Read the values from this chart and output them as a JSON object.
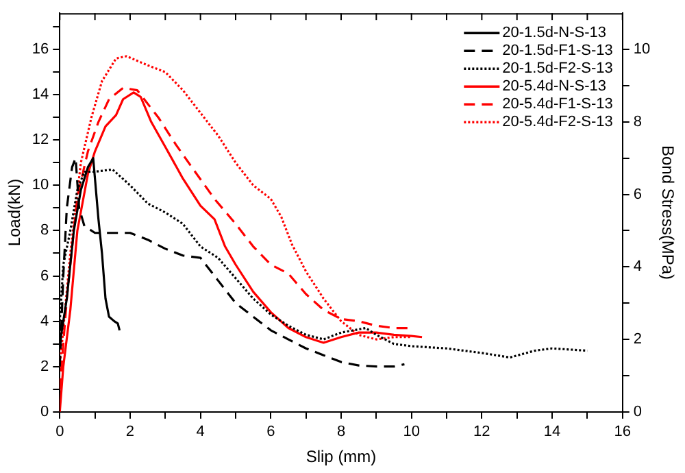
{
  "chart_data": {
    "type": "line",
    "xlabel": "Slip (mm)",
    "ylabel": "Load(kN)",
    "y2label": "Bond Stress(MPa)",
    "xlim": [
      0,
      16
    ],
    "xticks": [
      0,
      {
        "value": 1,
        "label": null
      },
      2,
      {
        "value": 3,
        "label": null
      },
      4,
      {
        "value": 5,
        "label": null
      },
      6,
      {
        "value": 7,
        "label": null
      },
      8,
      {
        "value": 9,
        "label": null
      },
      10,
      {
        "value": 11,
        "label": null
      },
      12,
      {
        "value": 13,
        "label": null
      },
      14,
      {
        "value": 15,
        "label": null
      },
      16
    ],
    "ylim": [
      0,
      17.6
    ],
    "yticks": [
      0,
      {
        "value": 1,
        "label": null
      },
      2,
      {
        "value": 3,
        "label": null
      },
      4,
      {
        "value": 5,
        "label": null
      },
      6,
      {
        "value": 7,
        "label": null
      },
      8,
      {
        "value": 9,
        "label": null
      },
      10,
      {
        "value": 11,
        "label": null
      },
      12,
      {
        "value": 13,
        "label": null
      },
      14,
      {
        "value": 15,
        "label": null
      },
      16,
      {
        "value": 17,
        "label": null
      }
    ],
    "y2lim": [
      0,
      11
    ],
    "y2ticks": [
      0,
      {
        "value": 1,
        "label": null
      },
      2,
      {
        "value": 3,
        "label": null
      },
      4,
      {
        "value": 5,
        "label": null
      },
      6,
      {
        "value": 7,
        "label": null
      },
      8,
      {
        "value": 9,
        "label": null
      },
      10
    ],
    "grid": false,
    "legend": "top right",
    "marker": "none",
    "series": [
      {
        "name": "20-1.5d-N-S-13",
        "color": "#000000",
        "line_style": "solid",
        "x": [
          0,
          0.2,
          0.4,
          0.6,
          0.8,
          0.95,
          1.1,
          1.2,
          1.3,
          1.4,
          1.55,
          1.65,
          1.7
        ],
        "values": [
          3,
          5,
          8,
          9.8,
          10.8,
          11.2,
          8.5,
          7,
          5,
          4.2,
          4,
          3.9,
          3.6
        ]
      },
      {
        "name": "20-1.5d-F1-S-13",
        "color": "#000000",
        "line_style": "dashed",
        "x": [
          0,
          0.1,
          0.2,
          0.35,
          0.45,
          0.55,
          0.7,
          1,
          2,
          2.5,
          3,
          3.5,
          4,
          4.5,
          5,
          5.5,
          6,
          6.5,
          7,
          7.5,
          8,
          8.5,
          9,
          9.5,
          9.8
        ],
        "values": [
          2,
          6,
          9,
          10.8,
          11.2,
          9,
          8.2,
          7.9,
          7.9,
          7.6,
          7.2,
          6.9,
          6.8,
          5.8,
          4.8,
          4.2,
          3.6,
          3.2,
          2.8,
          2.5,
          2.2,
          2.05,
          2,
          2,
          2.1
        ]
      },
      {
        "name": "20-1.5d-F2-S-13",
        "color": "#000000",
        "line_style": "dotted",
        "x": [
          0,
          0.1,
          0.3,
          0.5,
          0.7,
          1,
          1.5,
          2,
          2.5,
          3,
          3.5,
          4,
          4.5,
          5,
          5.5,
          6,
          6.5,
          7,
          7.5,
          8,
          8.7,
          9,
          9.5,
          10,
          11,
          12,
          12.8,
          13.5,
          14,
          15
        ],
        "values": [
          4,
          6.5,
          8,
          9.8,
          10.6,
          10.6,
          10.7,
          10,
          9.2,
          8.8,
          8.3,
          7.3,
          6.8,
          5.9,
          5,
          4.3,
          3.8,
          3.4,
          3.2,
          3.5,
          3.7,
          3.4,
          3,
          2.9,
          2.8,
          2.6,
          2.4,
          2.7,
          2.8,
          2.7
        ]
      },
      {
        "name": "20-5.4d-N-S-13",
        "color": "#ff0000",
        "line_style": "solid",
        "x": [
          0,
          0.1,
          0.3,
          0.5,
          0.8,
          1,
          1.3,
          1.6,
          1.8,
          2.1,
          2.3,
          2.6,
          3,
          3.5,
          4,
          4.4,
          4.7,
          5,
          5.5,
          6,
          6.5,
          7,
          7.5,
          8,
          8.5,
          9,
          9.5,
          10,
          10.3
        ],
        "values": [
          0,
          2,
          4.5,
          8,
          10.5,
          11.5,
          12.6,
          13.1,
          13.8,
          14.1,
          13.9,
          12.8,
          11.7,
          10.3,
          9.1,
          8.5,
          7.3,
          6.5,
          5.3,
          4.4,
          3.7,
          3.3,
          3.05,
          3.3,
          3.5,
          3.5,
          3.4,
          3.35,
          3.3
        ]
      },
      {
        "name": "20-5.4d-F1-S-13",
        "color": "#ff0000",
        "line_style": "dashed",
        "x": [
          0,
          0.2,
          0.5,
          0.8,
          1.1,
          1.4,
          1.8,
          2.2,
          2.8,
          3.3,
          3.8,
          4.4,
          5,
          5.5,
          6,
          6.5,
          7,
          7.5,
          8,
          8.5,
          9,
          9.5,
          10
        ],
        "values": [
          1,
          5,
          9.5,
          11.5,
          12.8,
          13.8,
          14.3,
          14.2,
          13,
          11.8,
          10.7,
          9.4,
          8.3,
          7.3,
          6.5,
          6.1,
          5.2,
          4.5,
          4.1,
          4,
          3.8,
          3.7,
          3.7
        ]
      },
      {
        "name": "20-5.4d-F2-S-13",
        "color": "#ff0000",
        "line_style": "dotted",
        "x": [
          0,
          0.3,
          0.6,
          0.9,
          1.2,
          1.6,
          1.9,
          2.5,
          3,
          3.5,
          4,
          4.5,
          5,
          5.5,
          6,
          6.3,
          6.6,
          7,
          7.5,
          8,
          8.5,
          9,
          9.5,
          10
        ],
        "values": [
          2,
          7,
          11,
          13,
          14.6,
          15.6,
          15.7,
          15.3,
          15,
          14.2,
          13.2,
          12.2,
          11,
          10,
          9.4,
          8.6,
          7.4,
          6.2,
          5,
          4,
          3.4,
          3.2,
          3.3,
          3.3
        ]
      }
    ]
  }
}
